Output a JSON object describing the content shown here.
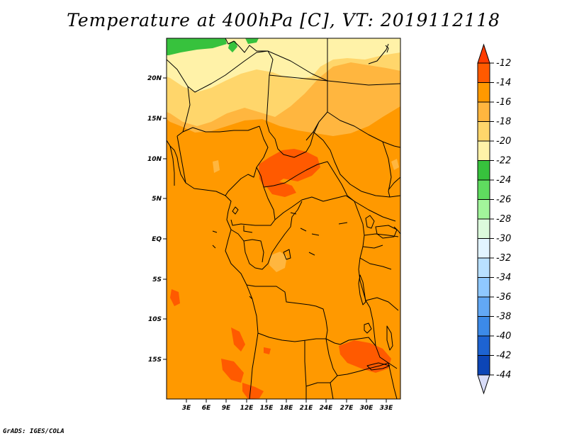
{
  "title": "Temperature at 400hPa [C], VT: 2019112118",
  "credit": "GrADS: IGES/COLA",
  "lat_ticks": [
    "20N",
    "15N",
    "10N",
    "5N",
    "EQ",
    "5S",
    "10S",
    "15S"
  ],
  "lon_ticks": [
    "3E",
    "6E",
    "9E",
    "12E",
    "15E",
    "18E",
    "21E",
    "24E",
    "27E",
    "30E",
    "33E"
  ],
  "colorbar": {
    "labels": [
      "-12",
      "-14",
      "-16",
      "-18",
      "-20",
      "-22",
      "-24",
      "-26",
      "-28",
      "-30",
      "-32",
      "-34",
      "-36",
      "-38",
      "-40",
      "-42",
      "-44"
    ],
    "colors": [
      "#ff5a00",
      "#ff9900",
      "#ffb63f",
      "#ffd66b",
      "#fff2a8",
      "#37c23d",
      "#5fdc5f",
      "#a2f59b",
      "#dcfadc",
      "#e2f4ff",
      "#b9e0ff",
      "#8fc8ff",
      "#62a8f5",
      "#3c8ae8",
      "#1d63d2",
      "#0c45b6"
    ],
    "over_color": "#ff3c00",
    "under_color": "#d8dcf8"
  }
}
